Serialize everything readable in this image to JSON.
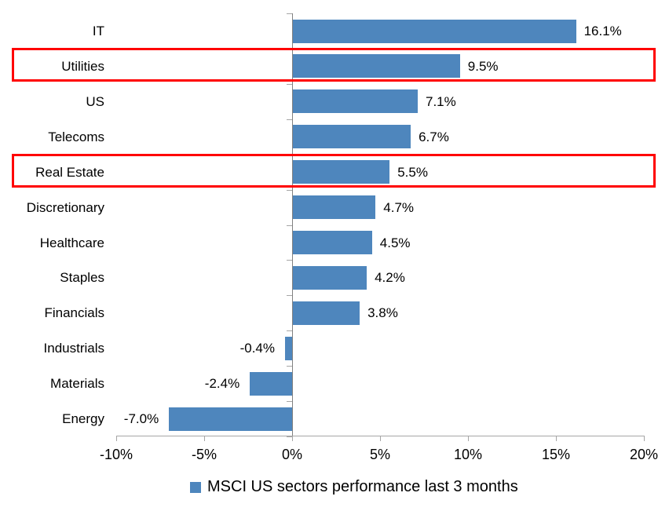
{
  "chart_data": {
    "type": "bar",
    "orientation": "horizontal",
    "title": "",
    "categories": [
      "IT",
      "Utilities",
      "US",
      "Telecoms",
      "Real Estate",
      "Discretionary",
      "Healthcare",
      "Staples",
      "Financials",
      "Industrials",
      "Materials",
      "Energy"
    ],
    "values": [
      16.1,
      9.5,
      7.1,
      6.7,
      5.5,
      4.7,
      4.5,
      4.2,
      3.8,
      -0.4,
      -2.4,
      -7.0
    ],
    "point_labels": [
      "16.1%",
      "9.5%",
      "7.1%",
      "6.7%",
      "5.5%",
      "4.7%",
      "4.5%",
      "4.2%",
      "3.8%",
      "-0.4%",
      "-2.4%",
      "-7.0%"
    ],
    "highlighted_categories": [
      "Utilities",
      "Real Estate"
    ],
    "series": [
      {
        "name": "MSCI US sectors performance last 3 months"
      }
    ],
    "xlim": [
      -10,
      20
    ],
    "xticks": [
      -10,
      -5,
      0,
      5,
      10,
      15,
      20
    ],
    "xtick_labels": [
      "-10%",
      "-5%",
      "0%",
      "5%",
      "10%",
      "15%",
      "20%"
    ],
    "grid": false,
    "legend_position": "bottom",
    "colors": {
      "bar": "#4e86bd",
      "highlight_box": "#ff0000",
      "axis": "#a6a6a6",
      "zero_axis": "#808080",
      "text": "#000000",
      "background": "#ffffff"
    }
  },
  "legend": {
    "label": "MSCI US sectors performance last 3 months"
  }
}
